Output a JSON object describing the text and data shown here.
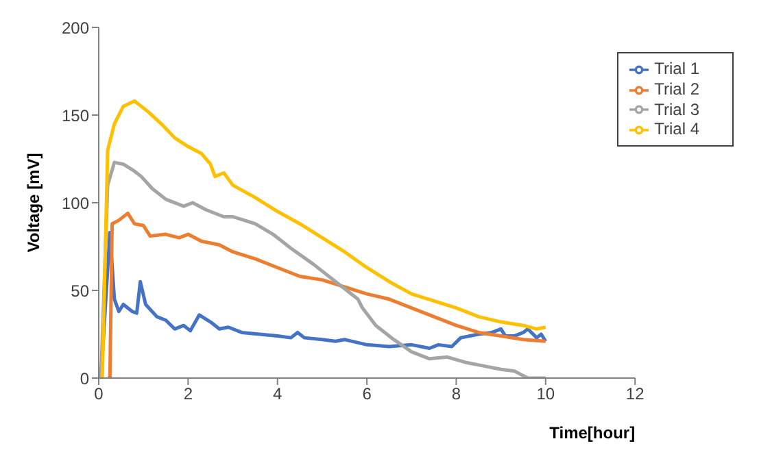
{
  "chart_data": {
    "type": "line",
    "xlabel": "Time[hour]",
    "ylabel": "Voltage [mV]",
    "xlim": [
      0,
      12
    ],
    "xticks": [
      0,
      2,
      4,
      6,
      8,
      10,
      12
    ],
    "ylim": [
      0,
      200
    ],
    "yticks": [
      0,
      50,
      100,
      150,
      200
    ],
    "grid": false,
    "legend": "top right",
    "marker": "none",
    "line_style": "solid",
    "series": [
      {
        "name": "Trial 1",
        "color": "#4472c4",
        "x": [
          0.05,
          0.25,
          0.35,
          0.45,
          0.55,
          0.75,
          0.85,
          0.93,
          1.05,
          1.3,
          1.5,
          1.7,
          1.9,
          2.05,
          2.25,
          2.5,
          2.7,
          2.9,
          3.2,
          3.6,
          4.0,
          4.3,
          4.45,
          4.6,
          5.0,
          5.3,
          5.5,
          6.0,
          6.5,
          7.0,
          7.4,
          7.6,
          7.9,
          8.1,
          8.5,
          8.8,
          9.0,
          9.1,
          9.3,
          9.5,
          9.6,
          9.8,
          9.9,
          10
        ],
        "values": [
          0,
          83,
          45,
          38,
          42,
          38,
          37,
          55,
          42,
          35,
          33,
          28,
          30,
          27,
          36,
          32,
          28,
          29,
          26,
          25,
          24,
          23,
          26,
          23,
          22,
          21,
          22,
          19,
          18,
          19,
          17,
          19,
          18,
          23,
          25,
          26,
          28,
          24,
          24,
          26,
          28,
          23,
          25,
          21
        ]
      },
      {
        "name": "Trial 2",
        "color": "#ed7d31",
        "x": [
          0.2,
          0.25,
          0.3,
          0.45,
          0.65,
          0.8,
          1.0,
          1.15,
          1.5,
          1.8,
          2.0,
          2.3,
          2.7,
          3.0,
          3.5,
          4.0,
          4.5,
          5.0,
          5.5,
          6.0,
          6.5,
          7.0,
          7.5,
          8.0,
          8.5,
          9.0,
          9.5,
          10
        ],
        "values": [
          0,
          0,
          88,
          90,
          94,
          88,
          87,
          81,
          82,
          80,
          82,
          78,
          76,
          72,
          68,
          63,
          58,
          56,
          52,
          48,
          45,
          40,
          35,
          30,
          26,
          24,
          22,
          21
        ]
      },
      {
        "name": "Trial 3",
        "color": "#a5a5a5",
        "x": [
          0.05,
          0.2,
          0.35,
          0.55,
          0.8,
          0.95,
          1.2,
          1.5,
          1.9,
          2.1,
          2.4,
          2.8,
          3.0,
          3.5,
          3.9,
          4.3,
          4.8,
          5.3,
          5.8,
          5.9,
          6.2,
          6.6,
          7.0,
          7.4,
          7.8,
          8.2,
          8.6,
          9.0,
          9.3,
          9.6,
          10
        ],
        "values": [
          0,
          110,
          123,
          122,
          118,
          115,
          108,
          102,
          98,
          100,
          96,
          92,
          92,
          88,
          82,
          74,
          65,
          55,
          45,
          40,
          30,
          22,
          15,
          11,
          12,
          9,
          7,
          5,
          4,
          0,
          0
        ]
      },
      {
        "name": "Trial 4",
        "color": "#ffc000",
        "x": [
          0.08,
          0.2,
          0.35,
          0.55,
          0.8,
          1.1,
          1.4,
          1.7,
          2.0,
          2.3,
          2.5,
          2.6,
          2.8,
          3.0,
          3.5,
          4.0,
          4.5,
          5.0,
          5.5,
          6.0,
          6.5,
          7.0,
          7.5,
          8.0,
          8.5,
          9.0,
          9.5,
          9.8,
          10
        ],
        "values": [
          0,
          130,
          145,
          155,
          158,
          152,
          145,
          137,
          132,
          128,
          122,
          115,
          117,
          110,
          103,
          95,
          88,
          80,
          72,
          63,
          55,
          48,
          44,
          40,
          35,
          32,
          30,
          28,
          29
        ]
      }
    ]
  }
}
